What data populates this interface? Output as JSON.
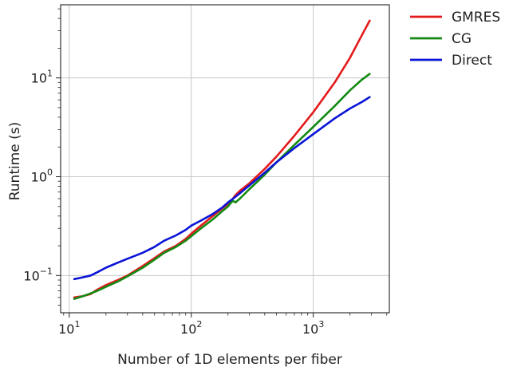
{
  "chart_data": {
    "type": "line",
    "title": "",
    "xlabel": "Number of 1D elements per fiber",
    "ylabel": "Runtime (s)",
    "xscale": "log",
    "yscale": "log",
    "xlim": [
      8.5,
      4200
    ],
    "ylim": [
      0.042,
      55
    ],
    "grid": true,
    "legend_position": "outside-top-right",
    "x_ticks": [
      {
        "value": 10,
        "base": "10",
        "exp": "1"
      },
      {
        "value": 100,
        "base": "10",
        "exp": "2"
      },
      {
        "value": 1000,
        "base": "10",
        "exp": "3"
      }
    ],
    "y_ticks": [
      {
        "value": 0.1,
        "base": "10",
        "exp": "−1"
      },
      {
        "value": 1,
        "base": "10",
        "exp": "0"
      },
      {
        "value": 10,
        "base": "10",
        "exp": "1"
      }
    ],
    "series": [
      {
        "name": "GMRES",
        "color": "#e31a1c",
        "x": [
          11,
          13,
          15,
          17,
          20,
          25,
          30,
          40,
          50,
          60,
          75,
          90,
          100,
          120,
          150,
          180,
          200,
          215,
          230,
          250,
          300,
          400,
          500,
          700,
          1000,
          1500,
          2000,
          2500,
          2900
        ],
        "y": [
          0.06,
          0.062,
          0.065,
          0.072,
          0.08,
          0.09,
          0.1,
          0.125,
          0.15,
          0.175,
          0.2,
          0.235,
          0.265,
          0.32,
          0.4,
          0.48,
          0.53,
          0.58,
          0.65,
          0.72,
          0.86,
          1.2,
          1.6,
          2.6,
          4.5,
          9.0,
          16.0,
          27.0,
          38.0
        ]
      },
      {
        "name": "CG",
        "color": "#138a13",
        "x": [
          11,
          13,
          15,
          17,
          20,
          25,
          30,
          40,
          50,
          60,
          75,
          90,
          100,
          120,
          150,
          180,
          200,
          210,
          220,
          230,
          250,
          300,
          400,
          500,
          700,
          1000,
          1500,
          2000,
          2500,
          2900
        ],
        "y": [
          0.058,
          0.062,
          0.066,
          0.07,
          0.077,
          0.087,
          0.098,
          0.12,
          0.145,
          0.17,
          0.195,
          0.225,
          0.25,
          0.3,
          0.37,
          0.45,
          0.5,
          0.54,
          0.57,
          0.55,
          0.6,
          0.75,
          1.05,
          1.4,
          2.1,
          3.2,
          5.2,
          7.5,
          9.6,
          11.0
        ]
      },
      {
        "name": "Direct",
        "color": "#0a14d6",
        "x": [
          11,
          13,
          15,
          17,
          20,
          25,
          30,
          40,
          50,
          60,
          75,
          90,
          100,
          120,
          150,
          180,
          200,
          220,
          250,
          300,
          400,
          500,
          700,
          1000,
          1500,
          2000,
          2500,
          2900
        ],
        "y": [
          0.092,
          0.096,
          0.1,
          0.108,
          0.12,
          0.135,
          0.148,
          0.17,
          0.195,
          0.225,
          0.255,
          0.29,
          0.32,
          0.36,
          0.42,
          0.49,
          0.55,
          0.6,
          0.68,
          0.82,
          1.1,
          1.4,
          1.95,
          2.7,
          3.9,
          4.9,
          5.7,
          6.4
        ]
      }
    ]
  }
}
